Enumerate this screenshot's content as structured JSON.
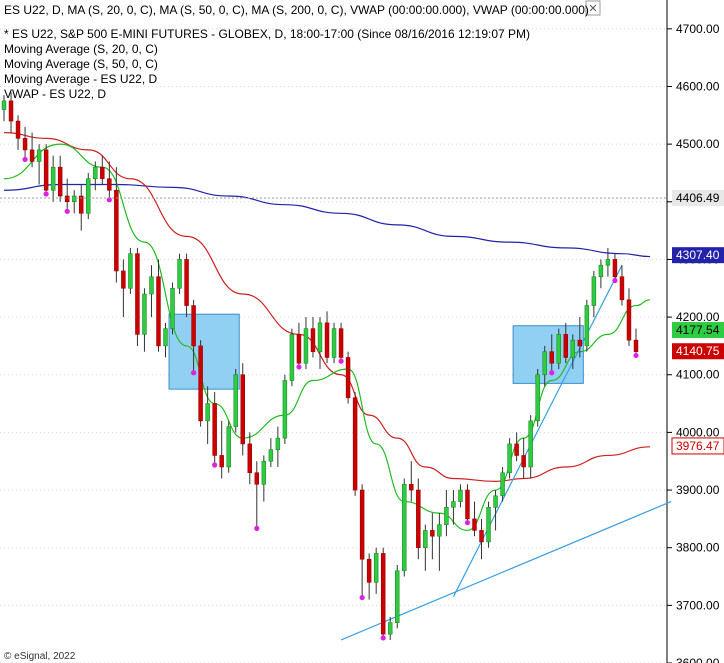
{
  "header": {
    "title_line": "ES U22, D, MA (S, 20, 0, C), MA (S, 50, 0, C), MA (S, 200, 0, C), VWAP (00:00:00.000), VWAP (00:00:00.000)",
    "legend_lines": [
      "* ES U22, S&P 500 E-MINI FUTURES - GLOBEX, D, 18:00-17:00 (Since 08/16/2016 12:19:07 PM)",
      "Moving Average (S, 20, 0, C)",
      "Moving Average (S, 50, 0, C)",
      "Moving Average - ES U22, D",
      "VWAP - ES U22, D"
    ],
    "close_symbol": "✕"
  },
  "watermark": "© eSignal, 2022",
  "colors": {
    "bull": "#2ecc40",
    "bear": "#cc0000",
    "ma20": "#22bb22",
    "ma50": "#cc2222",
    "ma200": "#2222aa",
    "trendline": "#3aa0e0",
    "box_fill": "#7ec8f0",
    "box_stroke": "#3a8fc8",
    "dot": "#dd22dd"
  },
  "chart_data": {
    "type": "candlestick",
    "ylim": [
      3600,
      4750
    ],
    "yticks": [
      3600,
      3700,
      3800,
      3900,
      4000,
      4100,
      4200,
      4300,
      4400,
      4500,
      4600,
      4700
    ],
    "price_labels": [
      {
        "value": 4406.49,
        "text": "4406.49",
        "style": "plain"
      },
      {
        "value": 4307.4,
        "text": "4307.40",
        "style": "blue"
      },
      {
        "value": 4177.54,
        "text": "4177.54",
        "style": "green"
      },
      {
        "value": 4140.75,
        "text": "4140.75",
        "style": "red"
      },
      {
        "value": 3976.47,
        "text": "3976.47",
        "style": "redoutline"
      }
    ],
    "candles": [
      [
        4560,
        4585,
        4540,
        4575
      ],
      [
        4575,
        4590,
        4520,
        4540
      ],
      [
        4540,
        4550,
        4490,
        4510
      ],
      [
        4510,
        4530,
        4470,
        4490
      ],
      [
        4490,
        4520,
        4460,
        4470
      ],
      [
        4470,
        4500,
        4430,
        4490
      ],
      [
        4490,
        4500,
        4410,
        4420
      ],
      [
        4420,
        4480,
        4400,
        4460
      ],
      [
        4460,
        4480,
        4400,
        4410
      ],
      [
        4410,
        4440,
        4380,
        4400
      ],
      [
        4400,
        4420,
        4380,
        4410
      ],
      [
        4410,
        4430,
        4350,
        4380
      ],
      [
        4380,
        4450,
        4370,
        4440
      ],
      [
        4440,
        4470,
        4420,
        4460
      ],
      [
        4460,
        4480,
        4430,
        4440
      ],
      [
        4440,
        4470,
        4400,
        4420
      ],
      [
        4420,
        4460,
        4260,
        4280
      ],
      [
        4280,
        4300,
        4200,
        4250
      ],
      [
        4250,
        4320,
        4240,
        4310
      ],
      [
        4310,
        4320,
        4150,
        4170
      ],
      [
        4170,
        4250,
        4140,
        4240
      ],
      [
        4240,
        4290,
        4200,
        4270
      ],
      [
        4270,
        4300,
        4140,
        4150
      ],
      [
        4150,
        4190,
        4130,
        4180
      ],
      [
        4180,
        4260,
        4170,
        4250
      ],
      [
        4250,
        4310,
        4240,
        4300
      ],
      [
        4300,
        4310,
        4200,
        4220
      ],
      [
        4220,
        4230,
        4100,
        4150
      ],
      [
        4150,
        4160,
        4010,
        4020
      ],
      [
        4020,
        4080,
        3980,
        4050
      ],
      [
        4050,
        4070,
        3940,
        3960
      ],
      [
        3960,
        4020,
        3920,
        3940
      ],
      [
        3940,
        4020,
        3930,
        4010
      ],
      [
        4010,
        4110,
        4000,
        4100
      ],
      [
        4100,
        4120,
        3960,
        3980
      ],
      [
        3980,
        4000,
        3910,
        3930
      ],
      [
        3930,
        3950,
        3830,
        3910
      ],
      [
        3910,
        3960,
        3880,
        3950
      ],
      [
        3950,
        3990,
        3940,
        3970
      ],
      [
        3970,
        4010,
        3940,
        3990
      ],
      [
        3990,
        4100,
        3980,
        4090
      ],
      [
        4090,
        4180,
        4080,
        4170
      ],
      [
        4170,
        4190,
        4110,
        4120
      ],
      [
        4120,
        4200,
        4110,
        4180
      ],
      [
        4180,
        4200,
        4130,
        4140
      ],
      [
        4140,
        4200,
        4110,
        4190
      ],
      [
        4190,
        4210,
        4120,
        4130
      ],
      [
        4130,
        4190,
        4120,
        4180
      ],
      [
        4180,
        4190,
        4120,
        4130
      ],
      [
        4130,
        4140,
        4050,
        4060
      ],
      [
        4060,
        4070,
        3890,
        3900
      ],
      [
        3900,
        3910,
        3710,
        3780
      ],
      [
        3780,
        3790,
        3710,
        3740
      ],
      [
        3740,
        3800,
        3720,
        3790
      ],
      [
        3790,
        3800,
        3640,
        3650
      ],
      [
        3650,
        3680,
        3640,
        3670
      ],
      [
        3670,
        3770,
        3660,
        3760
      ],
      [
        3760,
        3920,
        3750,
        3910
      ],
      [
        3910,
        3950,
        3880,
        3900
      ],
      [
        3900,
        3920,
        3780,
        3800
      ],
      [
        3800,
        3840,
        3760,
        3830
      ],
      [
        3830,
        3860,
        3780,
        3820
      ],
      [
        3820,
        3860,
        3760,
        3840
      ],
      [
        3840,
        3900,
        3820,
        3870
      ],
      [
        3870,
        3900,
        3840,
        3880
      ],
      [
        3880,
        3910,
        3870,
        3900
      ],
      [
        3900,
        3910,
        3840,
        3850
      ],
      [
        3850,
        3880,
        3820,
        3830
      ],
      [
        3830,
        3850,
        3780,
        3810
      ],
      [
        3810,
        3880,
        3800,
        3870
      ],
      [
        3870,
        3900,
        3830,
        3890
      ],
      [
        3890,
        3940,
        3880,
        3930
      ],
      [
        3930,
        3990,
        3920,
        3980
      ],
      [
        3980,
        4000,
        3950,
        3960
      ],
      [
        3960,
        3990,
        3920,
        3940
      ],
      [
        3940,
        4030,
        3920,
        4020
      ],
      [
        4020,
        4110,
        4010,
        4100
      ],
      [
        4100,
        4150,
        4080,
        4140
      ],
      [
        4140,
        4170,
        4100,
        4120
      ],
      [
        4120,
        4180,
        4110,
        4170
      ],
      [
        4170,
        4190,
        4120,
        4130
      ],
      [
        4130,
        4170,
        4110,
        4160
      ],
      [
        4160,
        4200,
        4130,
        4150
      ],
      [
        4150,
        4230,
        4140,
        4220
      ],
      [
        4220,
        4280,
        4200,
        4270
      ],
      [
        4270,
        4300,
        4250,
        4290
      ],
      [
        4290,
        4320,
        4270,
        4300
      ],
      [
        4300,
        4310,
        4260,
        4270
      ],
      [
        4270,
        4290,
        4220,
        4230
      ],
      [
        4230,
        4250,
        4150,
        4160
      ],
      [
        4160,
        4180,
        4130,
        4140
      ]
    ],
    "box_highlights": [
      [
        24,
        33,
        4075,
        4205
      ],
      [
        73,
        82,
        4085,
        4185
      ]
    ],
    "trendlines": [
      {
        "from": [
          48,
          3640
        ],
        "to": [
          95,
          3880
        ]
      },
      {
        "from": [
          64,
          3715
        ],
        "to": [
          88,
          4290
        ]
      }
    ],
    "ma_lines": {
      "ma20": [
        [
          0,
          4440
        ],
        [
          8,
          4500
        ],
        [
          14,
          4460
        ],
        [
          20,
          4330
        ],
        [
          26,
          4150
        ],
        [
          30,
          4050
        ],
        [
          34,
          3990
        ],
        [
          40,
          4030
        ],
        [
          44,
          4090
        ],
        [
          49,
          4110
        ],
        [
          53,
          3980
        ],
        [
          57,
          3880
        ],
        [
          62,
          3860
        ],
        [
          66,
          3830
        ],
        [
          70,
          3900
        ],
        [
          74,
          3990
        ],
        [
          78,
          4090
        ],
        [
          82,
          4140
        ],
        [
          86,
          4170
        ],
        [
          90,
          4220
        ],
        [
          92,
          4230
        ]
      ],
      "ma50": [
        [
          0,
          4520
        ],
        [
          6,
          4510
        ],
        [
          12,
          4490
        ],
        [
          18,
          4440
        ],
        [
          26,
          4340
        ],
        [
          34,
          4240
        ],
        [
          42,
          4170
        ],
        [
          48,
          4100
        ],
        [
          52,
          4030
        ],
        [
          56,
          3990
        ],
        [
          60,
          3940
        ],
        [
          64,
          3920
        ],
        [
          70,
          3915
        ],
        [
          74,
          3920
        ],
        [
          80,
          3940
        ],
        [
          86,
          3960
        ],
        [
          92,
          3975
        ]
      ],
      "ma200": [
        [
          0,
          4420
        ],
        [
          8,
          4430
        ],
        [
          16,
          4430
        ],
        [
          24,
          4425
        ],
        [
          32,
          4410
        ],
        [
          40,
          4395
        ],
        [
          48,
          4380
        ],
        [
          56,
          4360
        ],
        [
          64,
          4340
        ],
        [
          72,
          4330
        ],
        [
          80,
          4320
        ],
        [
          88,
          4310
        ],
        [
          92,
          4305
        ]
      ]
    }
  }
}
